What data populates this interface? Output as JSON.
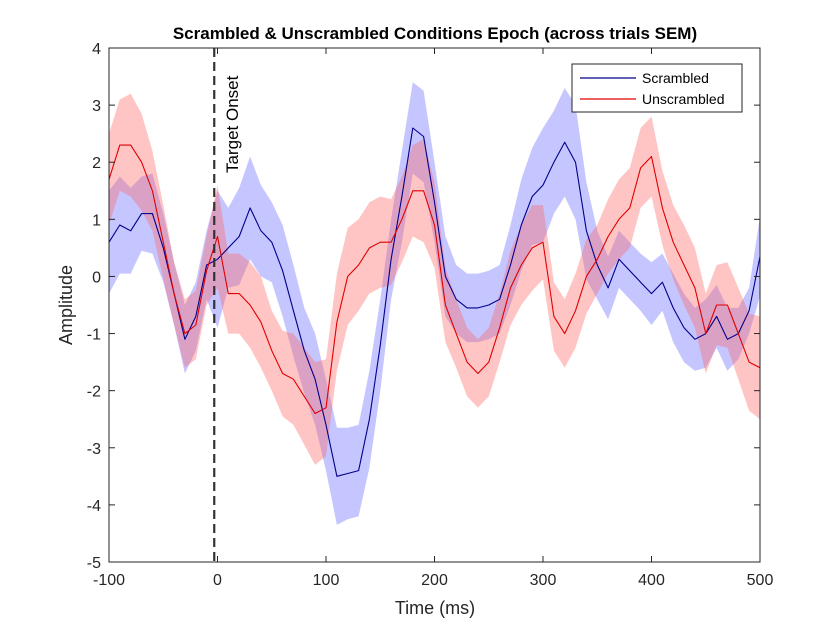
{
  "chart_data": {
    "type": "line",
    "title": "Scrambled & Unscrambled Conditions Epoch (across trials SEM)",
    "xlabel": "Time (ms)",
    "ylabel": "Amplitude",
    "xlim": [
      -100,
      500
    ],
    "ylim": [
      -5,
      4
    ],
    "xticks": [
      -100,
      0,
      100,
      200,
      300,
      400,
      500
    ],
    "yticks": [
      -5,
      -4,
      -3,
      -2,
      -1,
      0,
      1,
      2,
      3,
      4
    ],
    "xtick_labels": [
      "-100",
      "0",
      "100",
      "200",
      "300",
      "400",
      "500"
    ],
    "ytick_labels": [
      "-5",
      "-4",
      "-3",
      "-2",
      "-1",
      "0",
      "1",
      "2",
      "3",
      "4"
    ],
    "grid": false,
    "legend_position": "top-right",
    "annotations": [
      {
        "type": "vertical-dashed-line",
        "x": -3,
        "text": "Target Onset"
      }
    ],
    "series": [
      {
        "name": "Scrambled",
        "color": "#00008b",
        "fill_color": "#6666ff",
        "x": [
          -100,
          -90,
          -80,
          -70,
          -60,
          -50,
          -40,
          -30,
          -20,
          -10,
          0,
          10,
          20,
          30,
          40,
          50,
          60,
          70,
          80,
          90,
          100,
          110,
          120,
          130,
          140,
          150,
          160,
          170,
          180,
          190,
          200,
          210,
          220,
          230,
          240,
          250,
          260,
          270,
          280,
          290,
          300,
          310,
          320,
          330,
          340,
          350,
          360,
          370,
          380,
          390,
          400,
          410,
          420,
          430,
          440,
          450,
          460,
          470,
          480,
          490,
          500
        ],
        "mean": [
          0.6,
          0.9,
          0.8,
          1.1,
          1.1,
          0.5,
          -0.3,
          -1.1,
          -0.7,
          0.2,
          0.3,
          0.5,
          0.7,
          1.2,
          0.8,
          0.6,
          0.1,
          -0.6,
          -1.3,
          -1.8,
          -2.6,
          -3.5,
          -3.45,
          -3.4,
          -2.5,
          -1.2,
          0.3,
          1.4,
          2.6,
          2.45,
          1.3,
          0.0,
          -0.4,
          -0.55,
          -0.55,
          -0.5,
          -0.4,
          0.2,
          0.9,
          1.4,
          1.6,
          2.0,
          2.35,
          2.0,
          0.8,
          0.2,
          -0.2,
          0.3,
          0.1,
          -0.1,
          -0.3,
          -0.1,
          -0.55,
          -0.9,
          -1.1,
          -1.0,
          -0.7,
          -1.1,
          -1.0,
          -0.6,
          0.35
        ],
        "sem": [
          0.9,
          0.85,
          0.75,
          0.65,
          0.7,
          0.6,
          0.55,
          0.6,
          0.6,
          0.6,
          1.2,
          0.7,
          0.85,
          0.9,
          0.8,
          0.7,
          0.8,
          0.8,
          0.75,
          0.8,
          0.8,
          0.85,
          0.8,
          0.8,
          0.85,
          0.8,
          0.7,
          0.8,
          0.8,
          0.8,
          0.7,
          0.7,
          0.6,
          0.6,
          0.6,
          0.6,
          0.6,
          0.7,
          0.8,
          0.85,
          1.0,
          0.9,
          0.95,
          1.0,
          0.85,
          0.6,
          0.55,
          0.5,
          0.5,
          0.5,
          0.55,
          0.5,
          0.6,
          0.6,
          0.55,
          0.6,
          0.55,
          0.55,
          0.45,
          0.4,
          0.7
        ]
      },
      {
        "name": "Unscrambled",
        "color": "#e00000",
        "fill_color": "#ff6666",
        "x": [
          -100,
          -90,
          -80,
          -70,
          -60,
          -50,
          -40,
          -30,
          -20,
          -10,
          0,
          10,
          20,
          30,
          40,
          50,
          60,
          70,
          80,
          90,
          100,
          110,
          120,
          130,
          140,
          150,
          160,
          170,
          180,
          190,
          200,
          210,
          220,
          230,
          240,
          250,
          260,
          270,
          280,
          290,
          300,
          310,
          320,
          330,
          340,
          350,
          360,
          370,
          380,
          390,
          400,
          410,
          420,
          430,
          440,
          450,
          460,
          470,
          480,
          490,
          500
        ],
        "mean": [
          1.7,
          2.3,
          2.3,
          2.0,
          1.5,
          0.6,
          -0.3,
          -1.0,
          -0.85,
          0.1,
          0.7,
          -0.3,
          -0.3,
          -0.5,
          -0.8,
          -1.3,
          -1.7,
          -1.8,
          -2.1,
          -2.4,
          -2.3,
          -0.8,
          0.0,
          0.2,
          0.5,
          0.6,
          0.6,
          1.0,
          1.5,
          1.5,
          0.9,
          -0.5,
          -1.0,
          -1.5,
          -1.7,
          -1.5,
          -0.9,
          -0.2,
          0.2,
          0.5,
          0.6,
          -0.7,
          -1.0,
          -0.6,
          0.0,
          0.3,
          0.7,
          1.0,
          1.2,
          1.9,
          2.1,
          1.2,
          0.6,
          0.2,
          -0.2,
          -1.0,
          -0.5,
          -0.5,
          -1.0,
          -1.5,
          -1.6
        ],
        "sem": [
          0.8,
          0.8,
          0.9,
          0.85,
          0.7,
          0.65,
          0.55,
          0.6,
          0.6,
          0.6,
          0.9,
          0.7,
          0.7,
          0.75,
          0.8,
          0.7,
          0.75,
          0.8,
          0.85,
          0.9,
          0.85,
          0.85,
          0.85,
          0.8,
          0.8,
          0.8,
          0.75,
          0.75,
          0.8,
          0.9,
          0.75,
          0.65,
          0.6,
          0.6,
          0.6,
          0.6,
          0.6,
          0.65,
          0.7,
          0.75,
          0.65,
          0.6,
          0.6,
          0.65,
          0.65,
          0.6,
          0.65,
          0.7,
          0.7,
          0.7,
          0.7,
          0.65,
          0.65,
          0.7,
          0.7,
          0.7,
          0.7,
          0.75,
          0.8,
          0.85,
          0.9
        ]
      }
    ]
  }
}
